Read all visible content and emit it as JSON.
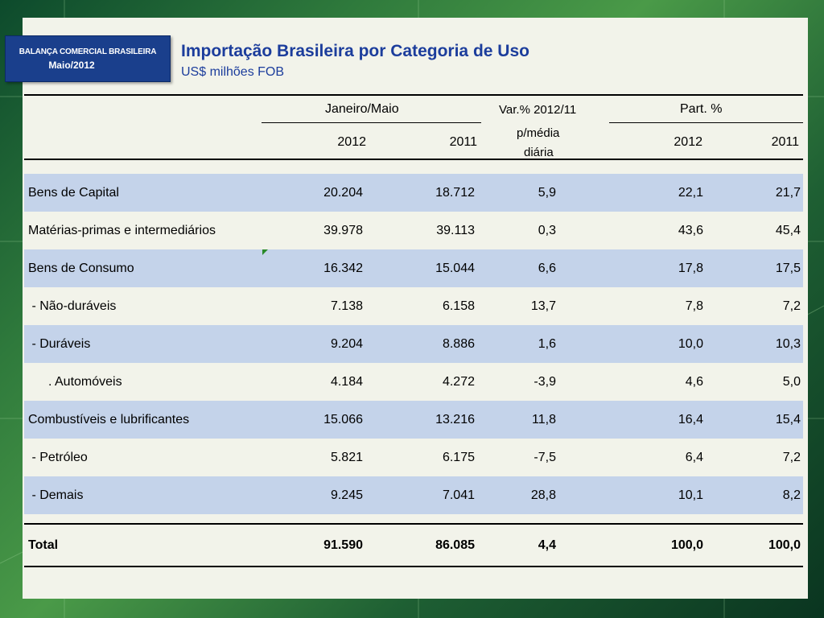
{
  "badge": {
    "title": "BALANÇA COMERCIAL BRASILEIRA",
    "subtitle": "Maio/2012"
  },
  "header": {
    "title": "Importação Brasileira por Categoria de Uso",
    "subtitle": "US$ milhões FOB"
  },
  "columns": {
    "group_period": "Janeiro/Maio",
    "var_line1": "Var.% 2012/11",
    "var_line2": "p/média",
    "var_line3": "diária",
    "group_part": "Part. %",
    "y2012": "2012",
    "y2011": "2011",
    "part2012": "2012",
    "part2011": "2011"
  },
  "rows": [
    {
      "label": "Bens de Capital",
      "v2012": "20.204",
      "v2011": "18.712",
      "var": "5,9",
      "p2012": "22,1",
      "p2011": "21,7"
    },
    {
      "label": "Matérias-primas e intermediários",
      "v2012": "39.978",
      "v2011": "39.113",
      "var": "0,3",
      "p2012": "43,6",
      "p2011": "45,4"
    },
    {
      "label": "Bens de Consumo",
      "v2012": "16.342",
      "v2011": "15.044",
      "var": "6,6",
      "p2012": "17,8",
      "p2011": "17,5"
    },
    {
      "label": " - Não-duráveis",
      "v2012": "7.138",
      "v2011": "6.158",
      "var": "13,7",
      "p2012": "7,8",
      "p2011": "7,2"
    },
    {
      "label": " - Duráveis",
      "v2012": "9.204",
      "v2011": "8.886",
      "var": "1,6",
      "p2012": "10,0",
      "p2011": "10,3"
    },
    {
      "label": ". Automóveis",
      "v2012": "4.184",
      "v2011": "4.272",
      "var": "-3,9",
      "p2012": "4,6",
      "p2011": "5,0"
    },
    {
      "label": "Combustíveis e lubrificantes",
      "v2012": "15.066",
      "v2011": "13.216",
      "var": "11,8",
      "p2012": "16,4",
      "p2011": "15,4"
    },
    {
      "label": " - Petróleo",
      "v2012": "5.821",
      "v2011": "6.175",
      "var": "-7,5",
      "p2012": "6,4",
      "p2011": "7,2"
    },
    {
      "label": " - Demais",
      "v2012": "9.245",
      "v2011": "7.041",
      "var": "28,8",
      "p2012": "10,1",
      "p2011": "8,2"
    }
  ],
  "total": {
    "label": "Total",
    "v2012": "91.590",
    "v2011": "86.085",
    "var": "4,4",
    "p2012": "100,0",
    "p2011": "100,0"
  }
}
